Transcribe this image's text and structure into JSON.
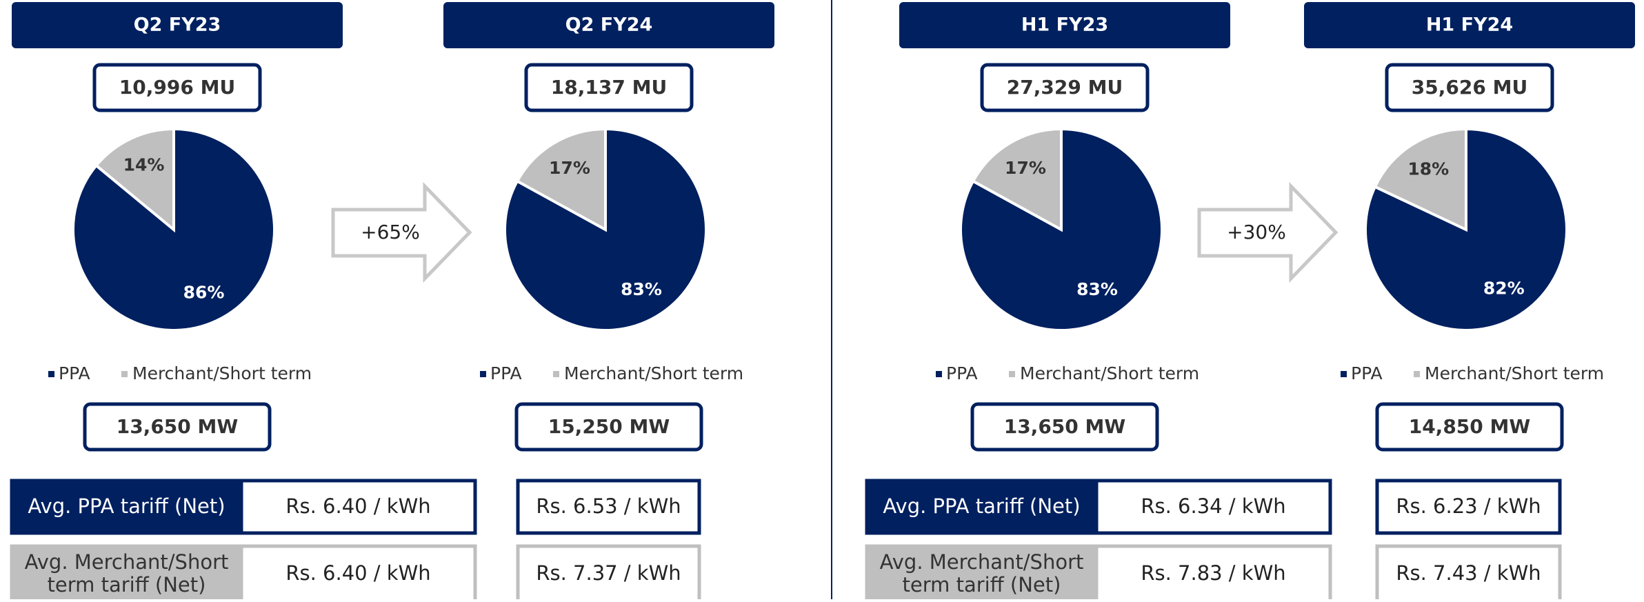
{
  "chart_data": [
    {
      "type": "pie",
      "title": "Q2 FY23",
      "energy": "10,996 MU",
      "capacity": "13,650 MW",
      "categories": [
        "PPA",
        "Merchant/Short term"
      ],
      "values": [
        86,
        14
      ],
      "value_labels": [
        "86%",
        "14%"
      ],
      "colors": [
        "#002060",
        "#bfbfbf"
      ],
      "tariffs": [
        "Rs. 6.40 / kWh",
        "Rs. 6.40 / kWh"
      ]
    },
    {
      "type": "pie",
      "title": "Q2 FY24",
      "energy": "18,137 MU",
      "capacity": "15,250 MW",
      "categories": [
        "PPA",
        "Merchant/Short term"
      ],
      "values": [
        83,
        17
      ],
      "value_labels": [
        "83%",
        "17%"
      ],
      "colors": [
        "#002060",
        "#bfbfbf"
      ],
      "tariffs": [
        "Rs. 6.53 / kWh",
        "Rs. 7.37 / kWh"
      ]
    },
    {
      "type": "pie",
      "title": "H1 FY23",
      "energy": "27,329 MU",
      "capacity": "13,650 MW",
      "categories": [
        "PPA",
        "Merchant/Short term"
      ],
      "values": [
        83,
        17
      ],
      "value_labels": [
        "83%",
        "17%"
      ],
      "colors": [
        "#002060",
        "#bfbfbf"
      ],
      "tariffs": [
        "Rs. 6.34 / kWh",
        "Rs. 7.83 / kWh"
      ]
    },
    {
      "type": "pie",
      "title": "H1 FY24",
      "energy": "35,626 MU",
      "capacity": "14,850 MW",
      "categories": [
        "PPA",
        "Merchant/Short term"
      ],
      "values": [
        82,
        18
      ],
      "value_labels": [
        "82%",
        "18%"
      ],
      "colors": [
        "#002060",
        "#bfbfbf"
      ],
      "tariffs": [
        "Rs. 6.23 / kWh",
        "Rs. 7.43 / kWh"
      ]
    }
  ],
  "growth": [
    "+65%",
    "+30%"
  ],
  "row_labels": [
    "Avg. PPA tariff (Net)",
    "Avg. Merchant/Short term tariff (Net)"
  ]
}
